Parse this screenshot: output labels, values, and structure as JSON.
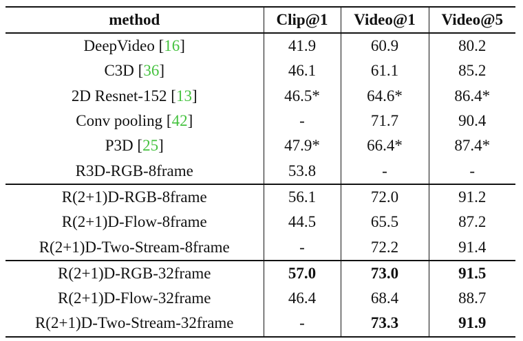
{
  "table": {
    "headers": [
      "method",
      "Clip@1",
      "Video@1",
      "Video@5"
    ],
    "groups": [
      [
        {
          "method": "DeepVideo",
          "ref": "16",
          "clip1": "41.9",
          "video1": "60.9",
          "video5": "80.2",
          "bold": []
        },
        {
          "method": "C3D",
          "ref": "36",
          "clip1": "46.1",
          "video1": "61.1",
          "video5": "85.2",
          "bold": []
        },
        {
          "method": "2D Resnet-152",
          "ref": "13",
          "clip1": "46.5*",
          "video1": "64.6*",
          "video5": "86.4*",
          "bold": []
        },
        {
          "method": "Conv pooling",
          "ref": "42",
          "clip1": "-",
          "video1": "71.7",
          "video5": "90.4",
          "bold": []
        },
        {
          "method": "P3D",
          "ref": "25",
          "clip1": "47.9*",
          "video1": "66.4*",
          "video5": "87.4*",
          "bold": []
        },
        {
          "method": "R3D-RGB-8frame",
          "ref": "",
          "clip1": "53.8",
          "video1": "-",
          "video5": "-",
          "bold": []
        }
      ],
      [
        {
          "method": "R(2+1)D-RGB-8frame",
          "ref": "",
          "clip1": "56.1",
          "video1": "72.0",
          "video5": "91.2",
          "bold": []
        },
        {
          "method": "R(2+1)D-Flow-8frame",
          "ref": "",
          "clip1": "44.5",
          "video1": "65.5",
          "video5": "87.2",
          "bold": []
        },
        {
          "method": "R(2+1)D-Two-Stream-8frame",
          "ref": "",
          "clip1": "-",
          "video1": "72.2",
          "video5": "91.4",
          "bold": []
        }
      ],
      [
        {
          "method": "R(2+1)D-RGB-32frame",
          "ref": "",
          "clip1": "57.0",
          "video1": "73.0",
          "video5": "91.5",
          "bold": [
            "clip1",
            "video1",
            "video5"
          ]
        },
        {
          "method": "R(2+1)D-Flow-32frame",
          "ref": "",
          "clip1": "46.4",
          "video1": "68.4",
          "video5": "88.7",
          "bold": []
        },
        {
          "method": "R(2+1)D-Two-Stream-32frame",
          "ref": "",
          "clip1": "-",
          "video1": "73.3",
          "video5": "91.9",
          "bold": [
            "video1",
            "video5"
          ]
        }
      ]
    ]
  },
  "colors": {
    "citation": "#45c23f",
    "text": "#111111",
    "rule": "#111111"
  }
}
